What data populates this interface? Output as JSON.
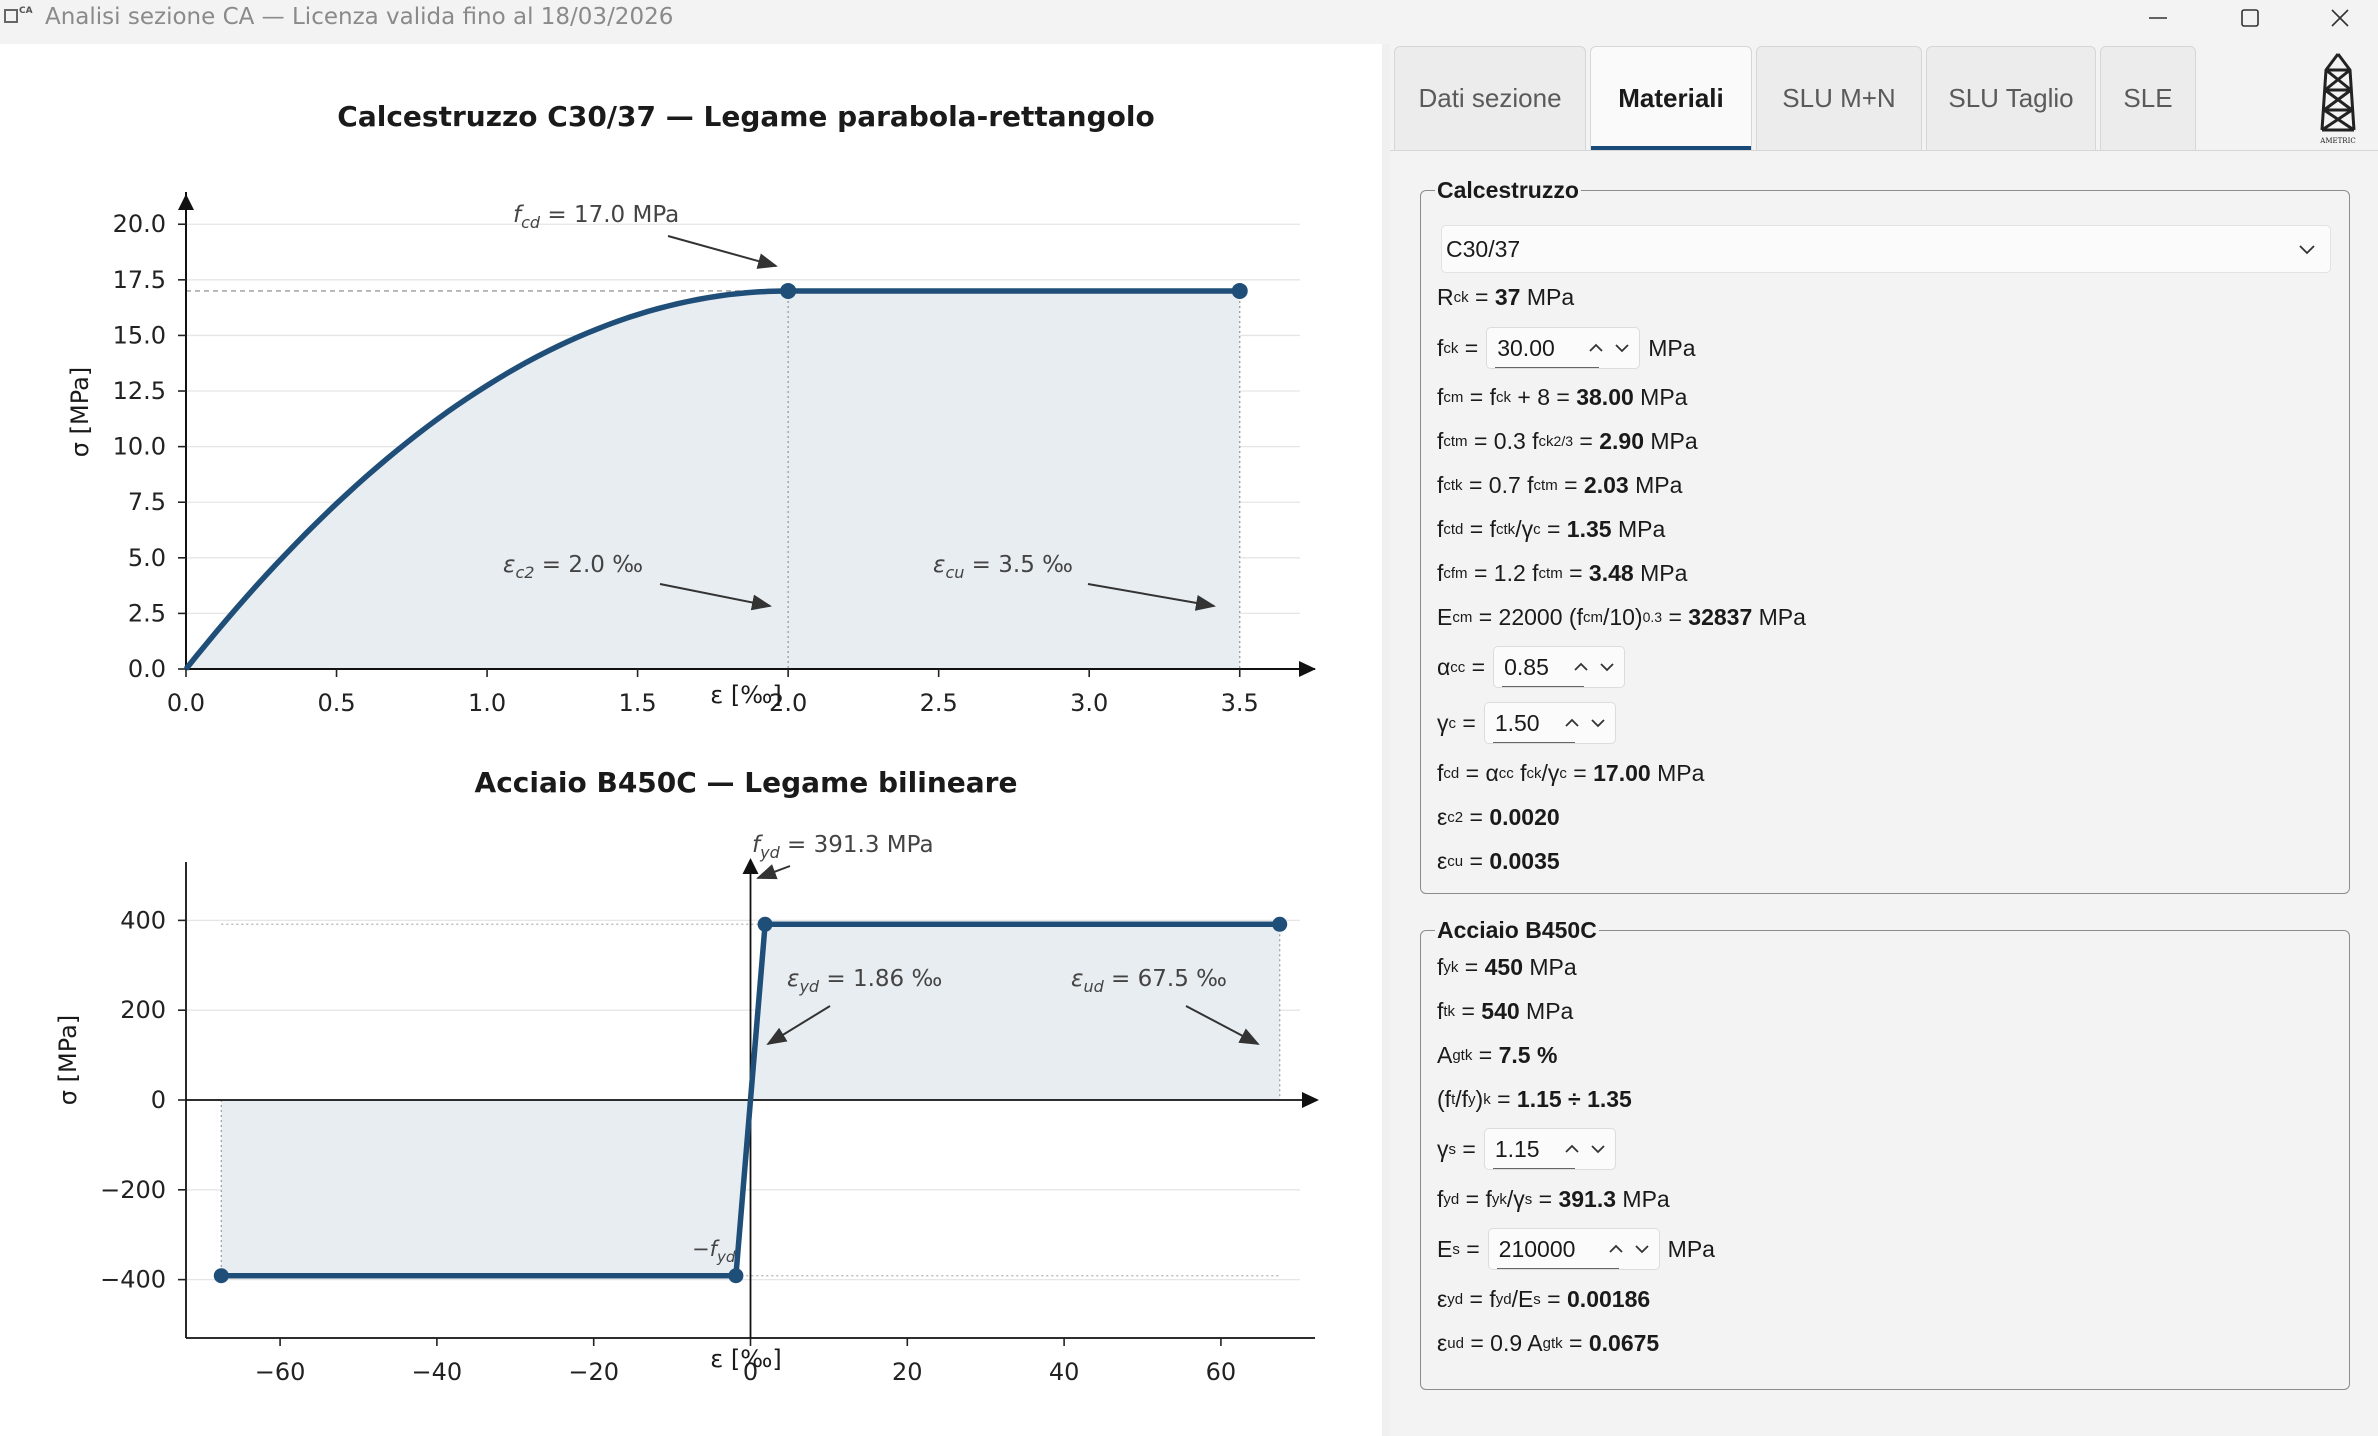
{
  "window": {
    "icon_text": "CA",
    "title": "Analisi sezione CA — Licenza valida fino al 18/03/2026"
  },
  "tabs": [
    "Dati sezione",
    "Materiali",
    "SLU M+N",
    "SLU Taglio",
    "SLE"
  ],
  "active_tab": "Materiali",
  "logo_text": "AMETRIC",
  "concrete": {
    "group_title": "Calcestruzzo",
    "class_selected": "C30/37",
    "Rck_value": "37",
    "fck_value": "30.00",
    "fcm_value": "38.00",
    "fctm_value": "2.90",
    "fctk_value": "2.03",
    "fctd_value": "1.35",
    "fcfm_value": "3.48",
    "Ecm_value": "32837",
    "alpha_cc_value": "0.85",
    "gamma_c_value": "1.50",
    "fcd_value": "17.00",
    "eps_c2_value": "0.0020",
    "eps_cu_value": "0.0035",
    "unit_mpa": "MPa"
  },
  "steel": {
    "group_title": "Acciaio B450C",
    "fyk_value": "450",
    "ftk_value": "540",
    "Agtk_value": "7.5 %",
    "ratio_value": "1.15 ÷ 1.35",
    "gamma_s_value": "1.15",
    "fyd_value": "391.3",
    "Es_value": "210000",
    "eps_yd_value": "0.00186",
    "eps_ud_value": "0.0675",
    "unit_mpa": "MPa"
  },
  "colors": {
    "curve": "#1f4e79",
    "fill": "#e8edf2",
    "accent": "#1a4a7a"
  },
  "chart_data": [
    {
      "type": "line",
      "title": "Calcestruzzo C30/37  —  Legame parabola-rettangolo",
      "xlabel": "ε  [‰]",
      "ylabel": "σ  [MPa]",
      "xlim": [
        0,
        3.75
      ],
      "ylim": [
        0,
        21
      ],
      "x_ticks": [
        "0.0",
        "0.5",
        "1.0",
        "1.5",
        "2.0",
        "2.5",
        "3.0",
        "3.5"
      ],
      "y_ticks": [
        "0.0",
        "2.5",
        "5.0",
        "7.5",
        "10.0",
        "12.5",
        "15.0",
        "17.5",
        "20.0"
      ],
      "series": [
        {
          "x": [
            0,
            0.25,
            0.5,
            0.75,
            1.0,
            1.25,
            1.5,
            1.75,
            2.0,
            3.5
          ],
          "y": [
            0,
            3.98,
            7.44,
            10.36,
            12.75,
            14.61,
            15.94,
            16.73,
            17.0,
            17.0
          ]
        }
      ],
      "markers": [
        {
          "x": 2.0,
          "y": 17.0
        },
        {
          "x": 3.5,
          "y": 17.0
        }
      ],
      "annotations": [
        {
          "text": "fcd = 17.0 MPa",
          "x": 2.0,
          "y": 17.0
        },
        {
          "text": "εc2 = 2.0 ‰",
          "x": 2.0,
          "y": 0
        },
        {
          "text": "εcu = 3.5 ‰",
          "x": 3.5,
          "y": 0
        }
      ],
      "grid": true
    },
    {
      "type": "line",
      "title": "Acciaio B450C  —  Legame bilineare",
      "xlabel": "ε  [‰]",
      "ylabel": "σ  [MPa]",
      "xlim": [
        -72,
        72
      ],
      "ylim": [
        -530,
        530
      ],
      "x_ticks": [
        "−60",
        "−40",
        "−20",
        "0",
        "20",
        "40",
        "60"
      ],
      "y_ticks": [
        "400",
        "200",
        "0",
        "−200",
        "−400"
      ],
      "series": [
        {
          "x": [
            -67.5,
            -1.86,
            1.86,
            67.5
          ],
          "y": [
            -391.3,
            -391.3,
            391.3,
            391.3
          ]
        }
      ],
      "markers": [
        {
          "x": -67.5,
          "y": -391.3
        },
        {
          "x": -1.86,
          "y": -391.3
        },
        {
          "x": 1.86,
          "y": 391.3
        },
        {
          "x": 67.5,
          "y": 391.3
        }
      ],
      "annotations": [
        {
          "text": "fyd = 391.3 MPa",
          "x": 1.86,
          "y": 391.3
        },
        {
          "text": "εyd = 1.86 ‰",
          "x": 1.86,
          "y": 0
        },
        {
          "text": "εud = 67.5 ‰",
          "x": 67.5,
          "y": 0
        },
        {
          "text": "−fyd",
          "x": -1.86,
          "y": -391.3
        }
      ],
      "grid": true
    }
  ]
}
